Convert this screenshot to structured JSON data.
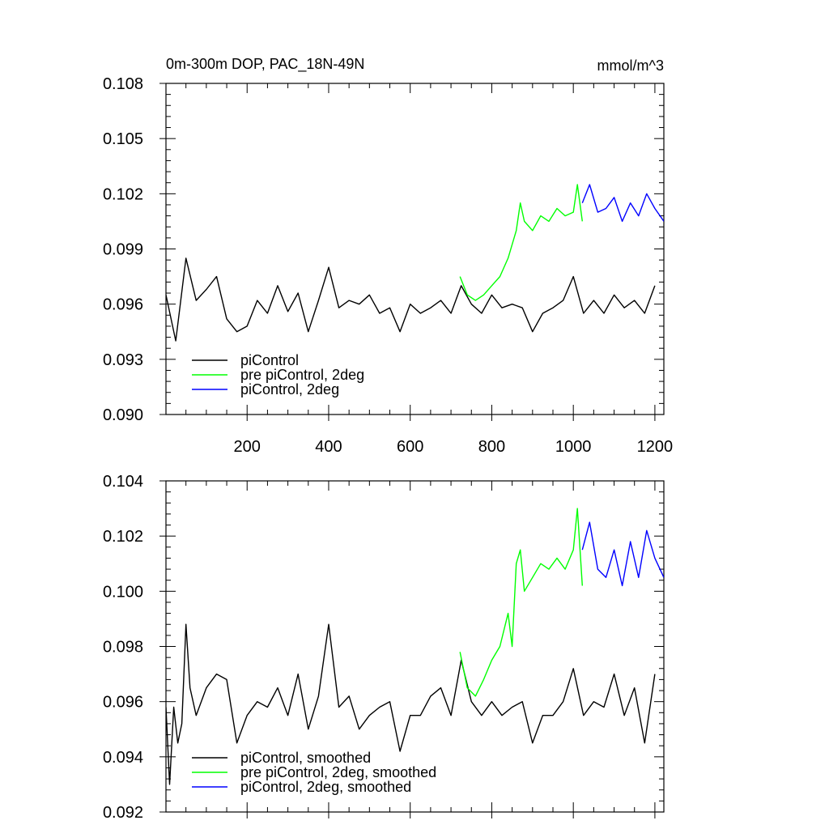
{
  "chart_data": [
    {
      "type": "line",
      "title": "0m-300m DOP, PAC_18N-49N",
      "units": "mmol/m^3",
      "xlim": [
        1,
        1222
      ],
      "ylim": [
        0.09,
        0.108
      ],
      "y_ticks": [
        "0.090",
        "0.093",
        "0.096",
        "0.099",
        "0.102",
        "0.105",
        "0.108"
      ],
      "x_ticks": [
        "200",
        "400",
        "600",
        "800",
        "1000",
        "1200"
      ],
      "legend": "bottom-left",
      "series": [
        {
          "name": "piControl",
          "color": "#000000",
          "x": [
            1,
            25,
            50,
            75,
            100,
            125,
            150,
            175,
            200,
            225,
            250,
            275,
            300,
            325,
            350,
            375,
            400,
            425,
            450,
            475,
            500,
            525,
            550,
            575,
            600,
            625,
            650,
            675,
            700,
            725,
            750,
            775,
            800,
            825,
            850,
            875,
            900,
            925,
            950,
            975,
            1000,
            1025,
            1050,
            1075,
            1100,
            1125,
            1150,
            1175,
            1200
          ],
          "y": [
            0.0965,
            0.094,
            0.0985,
            0.0962,
            0.0968,
            0.0975,
            0.0952,
            0.0945,
            0.0948,
            0.0962,
            0.0955,
            0.097,
            0.0956,
            0.0966,
            0.0945,
            0.0962,
            0.098,
            0.0958,
            0.0962,
            0.096,
            0.0965,
            0.0955,
            0.0958,
            0.0945,
            0.096,
            0.0955,
            0.0958,
            0.0962,
            0.0955,
            0.097,
            0.096,
            0.0955,
            0.0965,
            0.0958,
            0.096,
            0.0958,
            0.0945,
            0.0955,
            0.0958,
            0.0962,
            0.0975,
            0.0955,
            0.0962,
            0.0955,
            0.0965,
            0.0958,
            0.0962,
            0.0955,
            0.097
          ]
        },
        {
          "name": "pre piControl, 2deg",
          "color": "#00ff00",
          "x": [
            722,
            740,
            760,
            780,
            800,
            820,
            840,
            860,
            870,
            880,
            900,
            920,
            940,
            960,
            980,
            1000,
            1010,
            1022
          ],
          "y": [
            0.0975,
            0.0965,
            0.0962,
            0.0965,
            0.097,
            0.0975,
            0.0985,
            0.1,
            0.1015,
            0.1005,
            0.1,
            0.1008,
            0.1005,
            0.1012,
            0.1008,
            0.101,
            0.1025,
            0.1005
          ]
        },
        {
          "name": "piControl, 2deg",
          "color": "#0000ff",
          "x": [
            1022,
            1040,
            1060,
            1080,
            1100,
            1120,
            1140,
            1160,
            1180,
            1200,
            1222
          ],
          "y": [
            0.1015,
            0.1025,
            0.101,
            0.1012,
            0.1018,
            0.1005,
            0.1015,
            0.1008,
            0.102,
            0.1012,
            0.1005
          ]
        }
      ]
    },
    {
      "type": "line",
      "xlim": [
        1,
        1222
      ],
      "ylim": [
        0.092,
        0.104
      ],
      "y_ticks": [
        "0.092",
        "0.094",
        "0.096",
        "0.098",
        "0.100",
        "0.102",
        "0.104"
      ],
      "legend": "bottom-left",
      "series": [
        {
          "name": "piControl, smoothed",
          "color": "#000000",
          "x": [
            1,
            10,
            20,
            30,
            40,
            50,
            60,
            75,
            100,
            125,
            150,
            175,
            200,
            225,
            250,
            275,
            300,
            325,
            350,
            375,
            400,
            425,
            450,
            475,
            500,
            525,
            550,
            575,
            600,
            625,
            650,
            675,
            700,
            725,
            750,
            775,
            800,
            825,
            850,
            875,
            900,
            925,
            950,
            975,
            1000,
            1025,
            1050,
            1075,
            1100,
            1125,
            1150,
            1175,
            1200
          ],
          "y": [
            0.0958,
            0.093,
            0.0958,
            0.0945,
            0.0952,
            0.0988,
            0.0965,
            0.0955,
            0.0965,
            0.097,
            0.0968,
            0.0945,
            0.0955,
            0.096,
            0.0958,
            0.0965,
            0.0955,
            0.097,
            0.095,
            0.0962,
            0.0988,
            0.0958,
            0.0962,
            0.095,
            0.0955,
            0.0958,
            0.096,
            0.0942,
            0.0955,
            0.0955,
            0.0962,
            0.0965,
            0.0955,
            0.0975,
            0.096,
            0.0955,
            0.096,
            0.0955,
            0.0958,
            0.096,
            0.0945,
            0.0955,
            0.0955,
            0.096,
            0.0972,
            0.0955,
            0.096,
            0.0958,
            0.097,
            0.0955,
            0.0965,
            0.0945,
            0.097
          ]
        },
        {
          "name": "pre piControl, 2deg, smoothed",
          "color": "#00ff00",
          "x": [
            722,
            740,
            760,
            780,
            800,
            820,
            840,
            850,
            860,
            870,
            880,
            900,
            920,
            940,
            960,
            980,
            1000,
            1010,
            1022
          ],
          "y": [
            0.0978,
            0.0965,
            0.0962,
            0.0968,
            0.0975,
            0.098,
            0.0992,
            0.098,
            0.101,
            0.1015,
            0.1,
            0.1005,
            0.101,
            0.1008,
            0.1012,
            0.1008,
            0.1015,
            0.103,
            0.1002
          ]
        },
        {
          "name": "piControl, 2deg, smoothed",
          "color": "#0000ff",
          "x": [
            1022,
            1040,
            1060,
            1080,
            1100,
            1120,
            1140,
            1160,
            1180,
            1200,
            1222
          ],
          "y": [
            0.1015,
            0.1025,
            0.1008,
            0.1005,
            0.1015,
            0.1002,
            0.1018,
            0.1005,
            0.1022,
            0.1012,
            0.1005
          ]
        }
      ]
    }
  ]
}
